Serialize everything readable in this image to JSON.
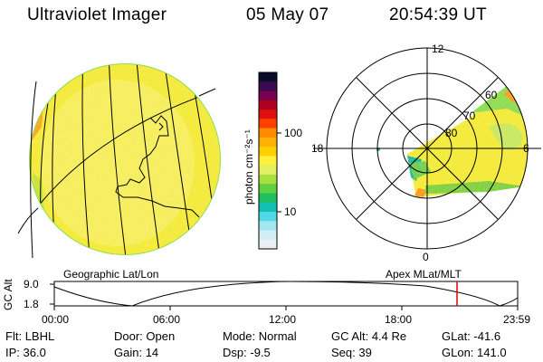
{
  "header": {
    "title": "Ultraviolet Imager",
    "date": "05 May 07",
    "time": "20:54:39 UT"
  },
  "left_panel": {
    "caption": "Geographic Lat/Lon"
  },
  "right_panel": {
    "caption": "Apex MLat/MLT",
    "mlt_labels": {
      "top": "12",
      "left": "18",
      "right": "6",
      "bottom": "0"
    },
    "lat_labels": [
      "60",
      "70",
      "80"
    ]
  },
  "colorbar": {
    "unit_label": "photon cm⁻²s⁻¹",
    "ticks": [
      "100",
      "10"
    ],
    "colors": [
      "#0a0a2a",
      "#3a0a50",
      "#7a0050",
      "#b00020",
      "#e01010",
      "#ff4000",
      "#ff8c00",
      "#ffb000",
      "#ffd000",
      "#fff040",
      "#e0f060",
      "#a8e040",
      "#60d040",
      "#20c060",
      "#10c0b0",
      "#50d8e8",
      "#a0e8f0",
      "#d0eef4",
      "#e8f0f4"
    ]
  },
  "timeline": {
    "ylabel": "GC Alt",
    "y_top": "9.0",
    "y_bottom": "1.8",
    "x_ticks": [
      "00:00",
      "06:00",
      "12:00",
      "18:00",
      "23:59"
    ],
    "marker_color": "#e00000"
  },
  "info": {
    "row1": [
      {
        "label": "Flt:",
        "value": "LBHL"
      },
      {
        "label": "Door:",
        "value": "Open"
      },
      {
        "label": "Mode:",
        "value": "Normal"
      },
      {
        "label": "GC Alt:",
        "value": "4.4 Re"
      },
      {
        "label": "GLat:",
        "value": "-41.6"
      }
    ],
    "row2": [
      {
        "label": "IP:",
        "value": "36.0"
      },
      {
        "label": "Gain:",
        "value": "14"
      },
      {
        "label": "Dsp:",
        "value": "-9.5"
      },
      {
        "label": "Seq:",
        "value": "39"
      },
      {
        "label": "GLon:",
        "value": "141.0"
      }
    ]
  }
}
